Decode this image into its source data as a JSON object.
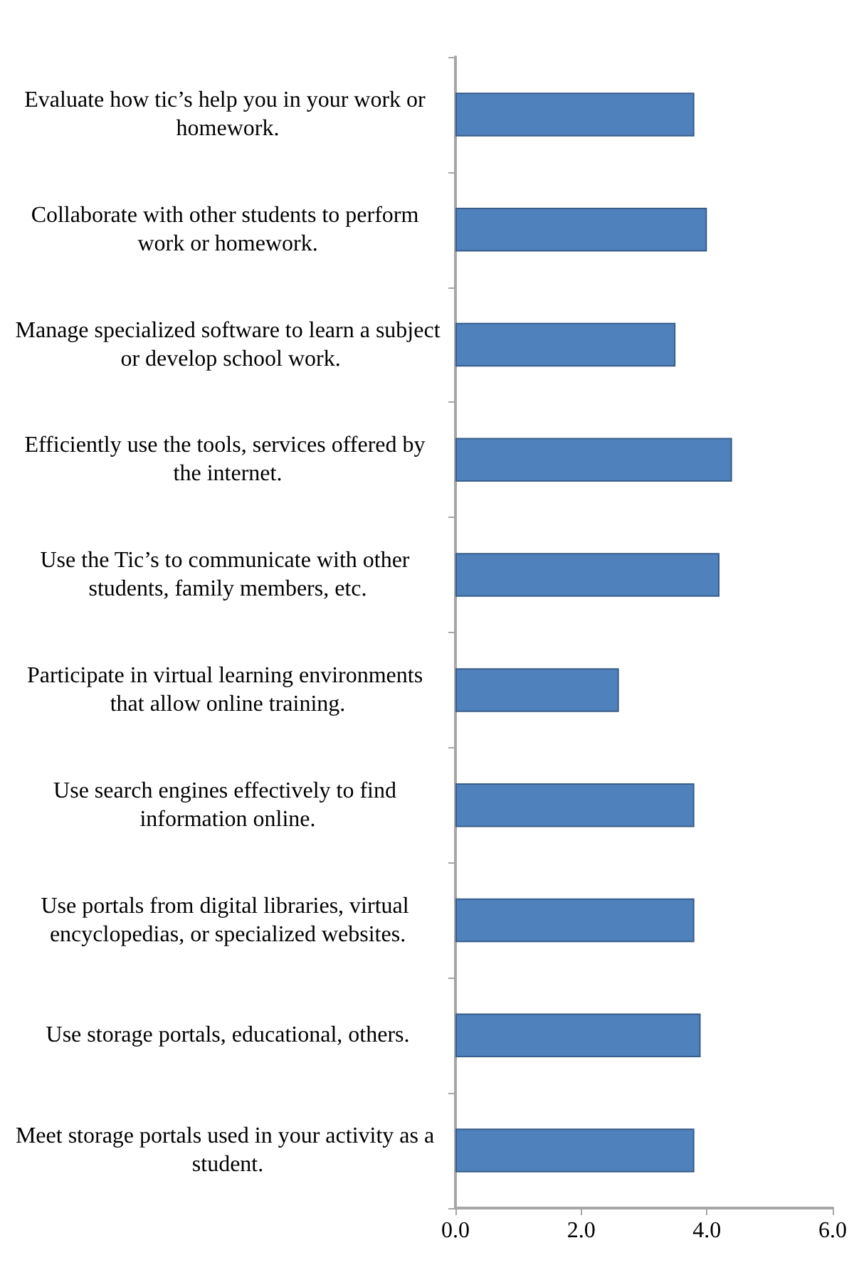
{
  "chart_data": {
    "type": "bar",
    "orientation": "horizontal",
    "categories": [
      "Evaluate how tic’s help you in your work or homework.",
      "Collaborate with other students to perform work or homework.",
      "Manage specialized software to learn a subject or develop school work.",
      "Efficiently use the tools, services offered by the internet.",
      "Use the Tic’s to communicate with other students, family members, etc.",
      "Participate in virtual learning environments that allow online training.",
      "Use search engines effectively to find information online.",
      "Use portals from digital libraries, virtual encyclopedias, or specialized websites.",
      "Use storage portals, educational, others.",
      "Meet storage portals used in your activity as a student."
    ],
    "values": [
      3.8,
      4.0,
      3.5,
      4.4,
      4.2,
      2.6,
      3.8,
      3.8,
      3.9,
      3.8
    ],
    "color": "#4f81bd",
    "xlim": [
      0,
      6
    ],
    "xticks": [
      {
        "value": 0,
        "label": "0.0"
      },
      {
        "value": 2,
        "label": "2.0"
      },
      {
        "value": 4,
        "label": "4.0"
      },
      {
        "value": 6,
        "label": "6.0"
      }
    ],
    "grid": false
  }
}
